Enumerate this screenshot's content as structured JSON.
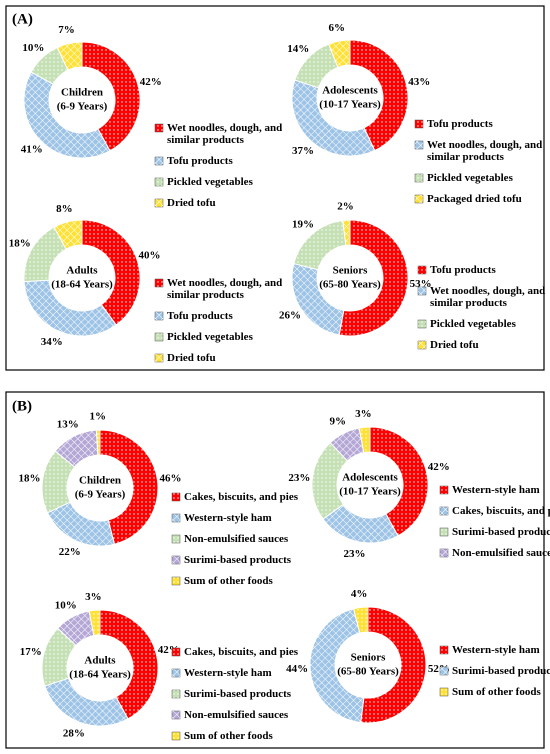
{
  "panel_labels": [
    "(A)",
    "(B)"
  ],
  "chart_data": [
    {
      "type": "donut",
      "title": "Children",
      "subtitle": "(6-9 Years)",
      "categories": [
        "Wet noodles, dough, and similar products",
        "Tofu products",
        "Pickled vegetables",
        "Dried tofu"
      ],
      "values": [
        42,
        41,
        10,
        7
      ],
      "value_labels": [
        "42%",
        "41%",
        "10%",
        "7%"
      ],
      "colors": [
        "#ff0000",
        "#9dc3e6",
        "#c5e0b4",
        "#ffe135"
      ]
    },
    {
      "type": "donut",
      "title": "Adolescents",
      "subtitle": "(10-17 Years)",
      "categories": [
        "Tofu products",
        "Wet noodles, dough, and similar products",
        "Pickled vegetables",
        "Packaged dried tofu"
      ],
      "values": [
        43,
        37,
        14,
        6
      ],
      "value_labels": [
        "43%",
        "37%",
        "14%",
        "6%"
      ],
      "colors": [
        "#ff0000",
        "#9dc3e6",
        "#c5e0b4",
        "#ffe135"
      ]
    },
    {
      "type": "donut",
      "title": "Adults",
      "subtitle": "(18-64 Years)",
      "categories": [
        "Wet noodles, dough, and similar products",
        "Tofu products",
        "Pickled vegetables",
        "Dried tofu"
      ],
      "values": [
        40,
        34,
        18,
        8
      ],
      "value_labels": [
        "40%",
        "34%",
        "18%",
        "8%"
      ],
      "colors": [
        "#ff0000",
        "#9dc3e6",
        "#c5e0b4",
        "#ffe135"
      ]
    },
    {
      "type": "donut",
      "title": "Seniors",
      "subtitle": "(65-80 Years)",
      "categories": [
        "Tofu products",
        "Wet noodles, dough, and similar products",
        "Pickled vegetables",
        "Dried tofu"
      ],
      "values": [
        53,
        26,
        19,
        2
      ],
      "value_labels": [
        "53%",
        "26%",
        "19%",
        "2%"
      ],
      "colors": [
        "#ff0000",
        "#9dc3e6",
        "#c5e0b4",
        "#ffe135"
      ]
    },
    {
      "type": "donut",
      "title": "Children",
      "subtitle": "(6-9 Years)",
      "categories": [
        "Cakes, biscuits, and pies",
        "Western-style ham",
        "Non-emulsified sauces",
        "Surimi-based products",
        "Sum of other foods"
      ],
      "values": [
        46,
        22,
        18,
        13,
        1
      ],
      "value_labels": [
        "46%",
        "22%",
        "18%",
        "13%",
        "1%"
      ],
      "colors": [
        "#ff0000",
        "#9dc3e6",
        "#c5e0b4",
        "#b4a7d6",
        "#ffe135"
      ]
    },
    {
      "type": "donut",
      "title": "Adolescents",
      "subtitle": "(10-17 Years)",
      "categories": [
        "Western-style ham",
        "Cakes, biscuits, and pies",
        "Surimi-based products",
        "Non-emulsified sauces",
        null
      ],
      "values": [
        42,
        23,
        23,
        9,
        3
      ],
      "value_labels": [
        "42%",
        "23%",
        "23%",
        "9%",
        "3%"
      ],
      "colors": [
        "#ff0000",
        "#9dc3e6",
        "#c5e0b4",
        "#b4a7d6",
        "#ffe135"
      ]
    },
    {
      "type": "donut",
      "title": "Adults",
      "subtitle": "(18-64 Years)",
      "categories": [
        "Cakes, biscuits, and pies",
        "Western-style ham",
        "Surimi-based products",
        "Non-emulsified sauces",
        "Sum of other foods"
      ],
      "values": [
        42,
        28,
        17,
        10,
        3
      ],
      "value_labels": [
        "42%",
        "28%",
        "17%",
        "10%",
        "3%"
      ],
      "colors": [
        "#ff0000",
        "#9dc3e6",
        "#c5e0b4",
        "#b4a7d6",
        "#ffe135"
      ]
    },
    {
      "type": "donut",
      "title": "Seniors",
      "subtitle": "(65-80 Years)",
      "categories": [
        "Western-style ham",
        "Surimi-based products",
        "Sum of other foods"
      ],
      "values": [
        52,
        44,
        4
      ],
      "value_labels": [
        "52%",
        "44%",
        "4%"
      ],
      "colors": [
        "#ff0000",
        "#9dc3e6",
        "#ffe135"
      ]
    }
  ]
}
